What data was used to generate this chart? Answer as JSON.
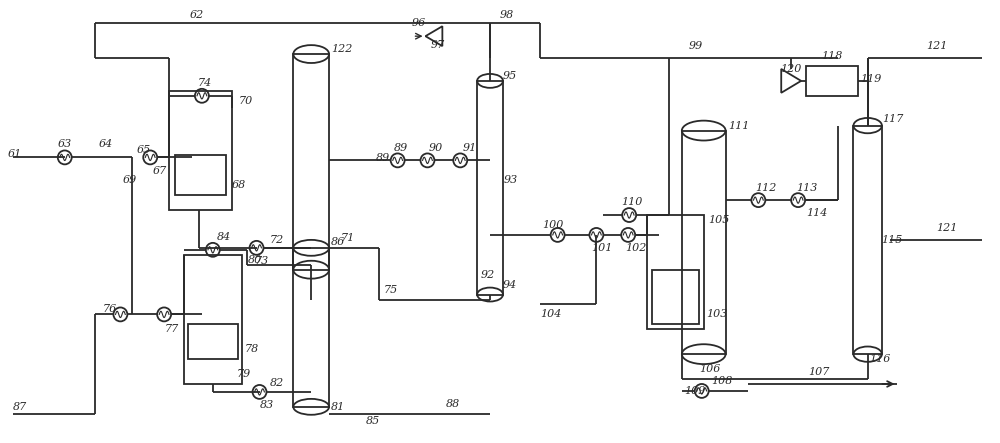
{
  "bg_color": "#ffffff",
  "line_color": "#2a2a2a",
  "fig_width": 10.0,
  "fig_height": 4.43
}
